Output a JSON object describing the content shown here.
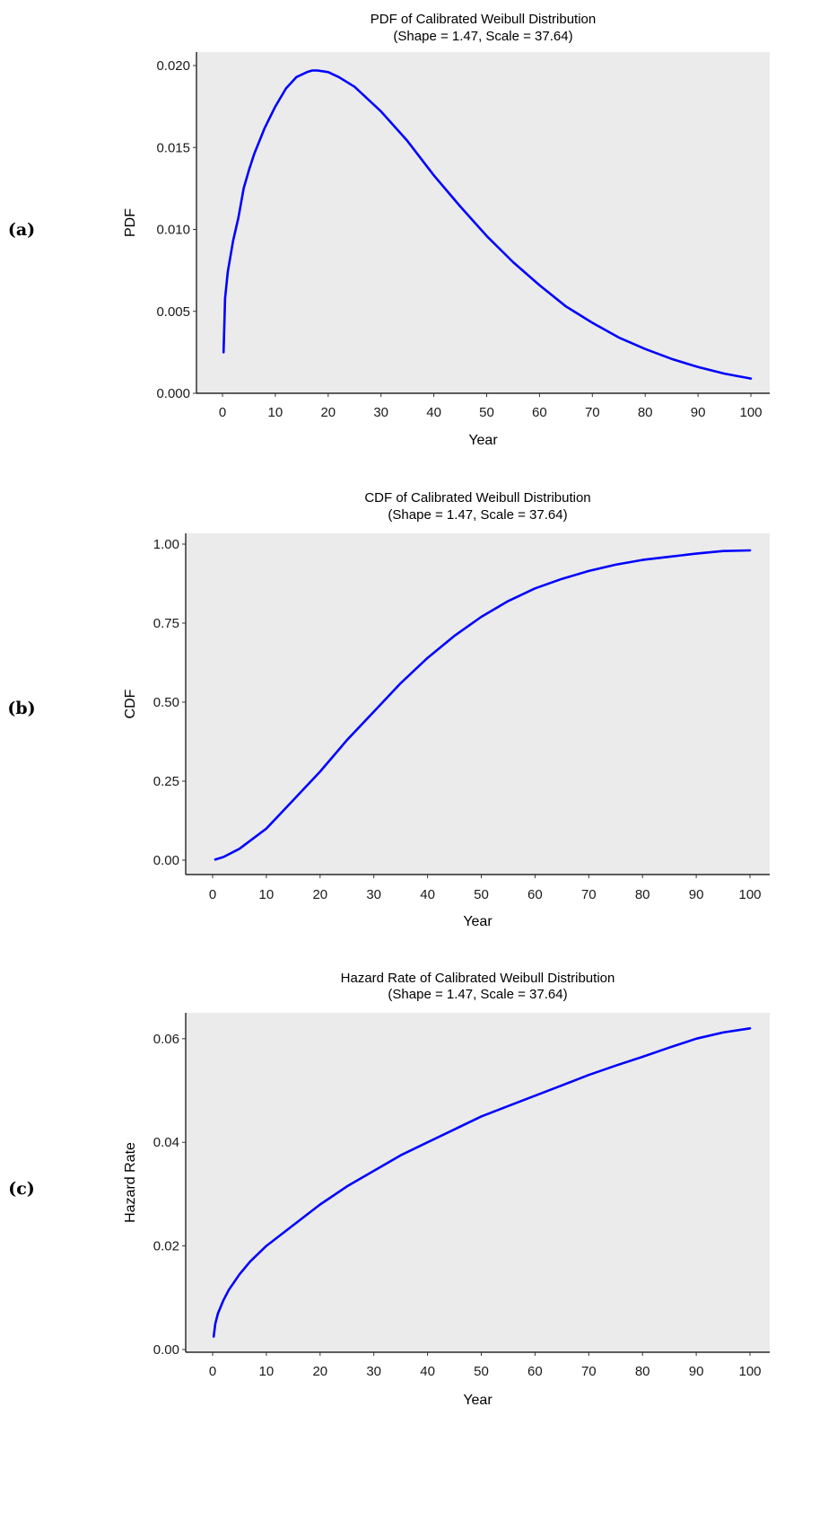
{
  "chart_data": [
    {
      "type": "line",
      "panel_label": "(a)",
      "title": "PDF of Calibrated Weibull Distribution",
      "subtitle": "(Shape = 1.47, Scale = 37.64)",
      "xlabel": "Year",
      "ylabel": "PDF",
      "xlim": [
        0,
        100
      ],
      "ylim": [
        0,
        0.02
      ],
      "xticks": [
        0,
        10,
        20,
        30,
        40,
        50,
        60,
        70,
        80,
        90,
        100
      ],
      "yticks": [
        "0.000",
        "0.005",
        "0.010",
        "0.015",
        "0.020"
      ],
      "grid": false,
      "series": [
        {
          "color": "#0000ff",
          "x": [
            0.2,
            0.5,
            1,
            2,
            3,
            4,
            5,
            6,
            8,
            10,
            12,
            14,
            16,
            17,
            18,
            20,
            22,
            25,
            30,
            35,
            40,
            45,
            50,
            55,
            60,
            65,
            70,
            75,
            80,
            85,
            90,
            95,
            100
          ],
          "y": [
            0.0025,
            0.0058,
            0.0074,
            0.0093,
            0.0107,
            0.0125,
            0.0136,
            0.0146,
            0.0162,
            0.0175,
            0.0186,
            0.0193,
            0.0196,
            0.0197,
            0.0197,
            0.0196,
            0.0193,
            0.0187,
            0.0172,
            0.0154,
            0.0133,
            0.0114,
            0.0096,
            0.008,
            0.0066,
            0.0053,
            0.0043,
            0.0034,
            0.0027,
            0.0021,
            0.0016,
            0.0012,
            0.0009
          ]
        }
      ]
    },
    {
      "type": "line",
      "panel_label": "(b)",
      "title": "CDF of Calibrated Weibull Distribution",
      "subtitle": "(Shape = 1.47, Scale = 37.64)",
      "xlabel": "Year",
      "ylabel": "CDF",
      "xlim": [
        0,
        100
      ],
      "ylim": [
        0,
        1
      ],
      "xticks": [
        0,
        10,
        20,
        30,
        40,
        50,
        60,
        70,
        80,
        90,
        100
      ],
      "yticks": [
        "0.00",
        "0.25",
        "0.50",
        "0.75",
        "1.00"
      ],
      "grid": false,
      "series": [
        {
          "color": "#0000ff",
          "x": [
            0.5,
            2,
            5,
            10,
            15,
            20,
            25,
            30,
            35,
            40,
            45,
            50,
            55,
            60,
            65,
            70,
            75,
            80,
            85,
            90,
            95,
            100
          ],
          "y": [
            0.002,
            0.01,
            0.036,
            0.1,
            0.19,
            0.28,
            0.38,
            0.47,
            0.56,
            0.64,
            0.71,
            0.77,
            0.82,
            0.86,
            0.89,
            0.915,
            0.935,
            0.95,
            0.96,
            0.97,
            0.978,
            0.98
          ]
        }
      ]
    },
    {
      "type": "line",
      "panel_label": "(c)",
      "title": "Hazard Rate of Calibrated Weibull Distribution",
      "subtitle": "(Shape = 1.47, Scale = 37.64)",
      "xlabel": "Year",
      "ylabel": "Hazard Rate",
      "xlim": [
        0,
        100
      ],
      "ylim": [
        0,
        0.065
      ],
      "xticks": [
        0,
        10,
        20,
        30,
        40,
        50,
        60,
        70,
        80,
        90,
        100
      ],
      "yticks": [
        "0.00",
        "0.02",
        "0.04",
        "0.06"
      ],
      "grid": false,
      "series": [
        {
          "color": "#0000ff",
          "x": [
            0.2,
            0.5,
            1,
            2,
            3,
            5,
            7,
            10,
            15,
            20,
            25,
            30,
            35,
            40,
            45,
            50,
            55,
            60,
            65,
            70,
            75,
            80,
            85,
            90,
            95,
            100
          ],
          "y": [
            0.0025,
            0.005,
            0.007,
            0.0095,
            0.0115,
            0.0145,
            0.017,
            0.02,
            0.024,
            0.028,
            0.0315,
            0.0345,
            0.0375,
            0.04,
            0.0425,
            0.045,
            0.047,
            0.049,
            0.051,
            0.053,
            0.0548,
            0.0565,
            0.0583,
            0.06,
            0.0612,
            0.062
          ]
        }
      ]
    }
  ]
}
